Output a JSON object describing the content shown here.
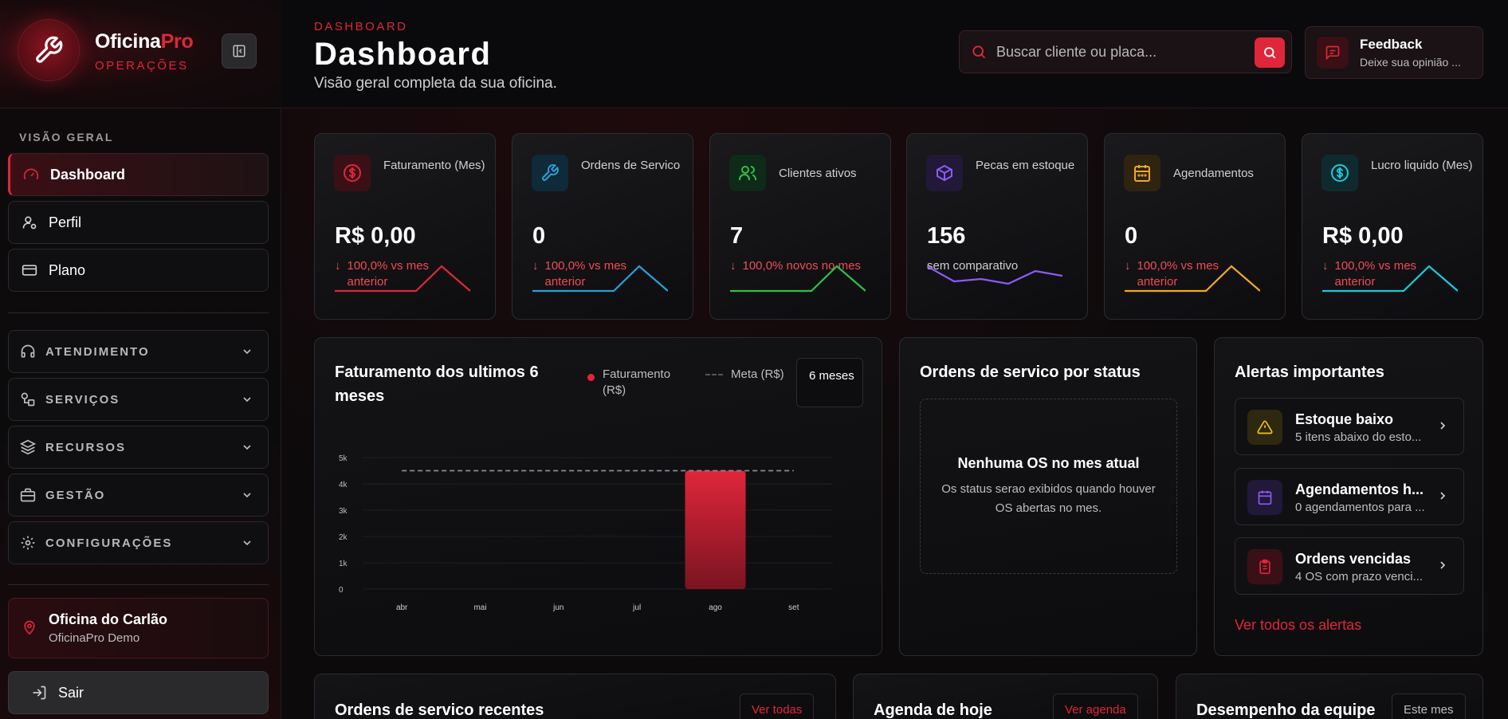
{
  "brand": {
    "name_main": "Oficina",
    "name_accent": "Pro",
    "sub": "OPERAÇÕES"
  },
  "sidebar": {
    "section_label": "VISÃO GERAL",
    "items": [
      {
        "label": "Dashboard",
        "icon": "gauge-icon",
        "active": true
      },
      {
        "label": "Perfil",
        "icon": "user-icon"
      },
      {
        "label": "Plano",
        "icon": "card-icon"
      }
    ],
    "groups": [
      {
        "label": "ATENDIMENTO",
        "icon": "headset-icon"
      },
      {
        "label": "SERVIÇOS",
        "icon": "shapes-icon"
      },
      {
        "label": "RECURSOS",
        "icon": "layers-icon"
      },
      {
        "label": "GESTÃO",
        "icon": "briefcase-icon"
      },
      {
        "label": "CONFIGURAÇÕES",
        "icon": "gear-icon"
      }
    ],
    "shop": {
      "name": "Oficina do Carlão",
      "sub": "OficinaPro Demo"
    },
    "logout": "Sair"
  },
  "header": {
    "crumb": "DASHBOARD",
    "title": "Dashboard",
    "subtitle": "Visão geral completa da sua oficina.",
    "search_placeholder": "Buscar cliente ou placa...",
    "feedback_title": "Feedback",
    "feedback_sub": "Deixe sua opinião ..."
  },
  "kpis": [
    {
      "label": "Faturamento (Mes)",
      "value": "R$ 0,00",
      "delta": "100,0% vs mes anterior",
      "color": "#e0263a",
      "icon": "dollar-icon"
    },
    {
      "label": "Ordens de Servico",
      "value": "0",
      "delta": "100,0% vs mes anterior",
      "color": "#2a9fd8",
      "icon": "wrench-icon"
    },
    {
      "label": "Clientes ativos",
      "value": "7",
      "delta": "100,0% novos no mes",
      "color": "#2fbf4a",
      "icon": "users-icon"
    },
    {
      "label": "Pecas em estoque",
      "value": "156",
      "delta": "sem comparativo",
      "color": "#8b5cf6",
      "icon": "box-icon"
    },
    {
      "label": "Agendamentos",
      "value": "0",
      "delta": "100,0% vs mes anterior",
      "color": "#f5a623",
      "icon": "calendar-icon"
    },
    {
      "label": "Lucro liquido (Mes)",
      "value": "R$ 0,00",
      "delta": "100,0% vs mes anterior",
      "color": "#1fc8d8",
      "icon": "dollar-icon"
    }
  ],
  "revenue_panel": {
    "title": "Faturamento dos ultimos 6 meses",
    "legend_revenue": "Faturamento (R$)",
    "legend_goal": "Meta (R$)",
    "range": "6 meses"
  },
  "chart_data": {
    "type": "bar",
    "categories": [
      "abr",
      "mai",
      "jun",
      "jul",
      "ago",
      "set"
    ],
    "series": [
      {
        "name": "Faturamento (R$)",
        "values": [
          0,
          0,
          0,
          0,
          4500,
          0
        ]
      },
      {
        "name": "Meta (R$)",
        "values": [
          4500,
          4500,
          4500,
          4500,
          4500,
          4500
        ],
        "style": "dashed-line"
      }
    ],
    "yticks": [
      "0",
      "1k",
      "2k",
      "3k",
      "4k",
      "5k"
    ],
    "ylim": [
      0,
      5000
    ],
    "grid": true
  },
  "status_panel": {
    "title": "Ordens de servico por status",
    "empty_title": "Nenhuma OS no mes atual",
    "empty_sub": "Os status serao exibidos quando houver OS abertas no mes."
  },
  "alerts_panel": {
    "title": "Alertas importantes",
    "items": [
      {
        "title": "Estoque baixo",
        "sub": "5 itens abaixo do esto...",
        "color": "#f5c518",
        "icon": "warning-icon"
      },
      {
        "title": "Agendamentos h...",
        "sub": "0 agendamentos para ...",
        "color": "#8b5cf6",
        "icon": "calendar-icon"
      },
      {
        "title": "Ordens vencidas",
        "sub": "4 OS com prazo venci...",
        "color": "#e0263a",
        "icon": "clipboard-icon"
      }
    ],
    "link": "Ver todos os alertas"
  },
  "bottom": {
    "recent_title": "Ordens de servico recentes",
    "recent_btn": "Ver todas",
    "agenda_title": "Agenda de hoje",
    "agenda_btn": "Ver agenda",
    "team_title": "Desempenho da equipe",
    "team_btn": "Este mes"
  }
}
